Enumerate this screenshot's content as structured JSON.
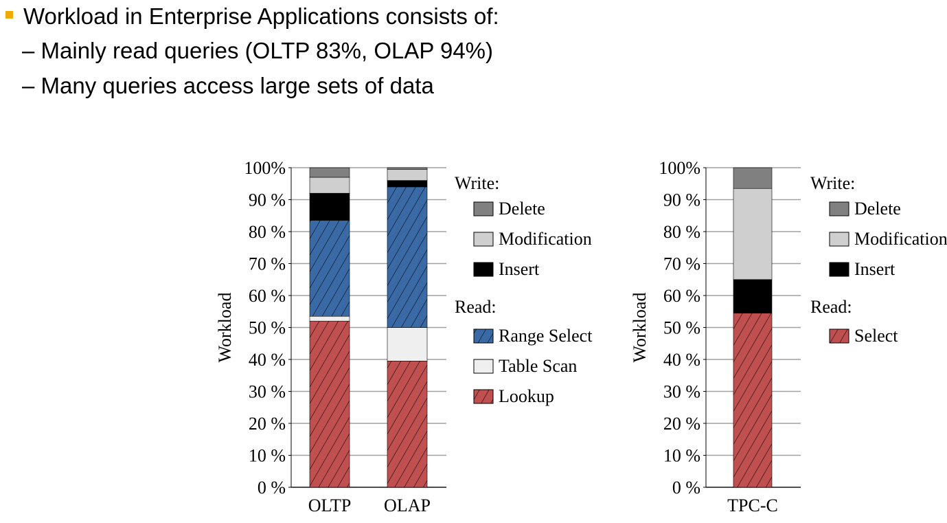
{
  "bullets": {
    "main": "Workload in Enterprise Applications consists of:",
    "sub1": "– Mainly read queries (OLTP 83%, OLAP 94%)",
    "sub2": "– Many queries access large sets of data"
  },
  "colors": {
    "bullet": "#f0ab00",
    "delete": "#808080",
    "modification": "#cfcfcf",
    "insert": "#000000",
    "range_select": "#3a6aa5",
    "table_scan": "#efefef",
    "lookup": "#c05050",
    "select": "#c05050",
    "grid": "#a0a0a0"
  },
  "chart_data": [
    {
      "type": "bar",
      "stacked": true,
      "ylabel": "Workload",
      "xlabel": "",
      "ylim": [
        0,
        100
      ],
      "y_ticks": [
        "0 %",
        "10 %",
        "20 %",
        "30 %",
        "40 %",
        "50 %",
        "60 %",
        "70 %",
        "80 %",
        "90 %",
        "100%"
      ],
      "categories": [
        "OLTP",
        "OLAP"
      ],
      "series": [
        {
          "name": "Lookup",
          "group": "Read",
          "values": [
            52,
            39.5
          ],
          "hatched": true,
          "color_key": "lookup"
        },
        {
          "name": "Table Scan",
          "group": "Read",
          "values": [
            1.5,
            10.5
          ],
          "hatched": false,
          "color_key": "table_scan"
        },
        {
          "name": "Range Select",
          "group": "Read",
          "values": [
            30,
            44
          ],
          "hatched": true,
          "color_key": "range_select"
        },
        {
          "name": "Insert",
          "group": "Write",
          "values": [
            8.5,
            2
          ],
          "hatched": false,
          "color_key": "insert"
        },
        {
          "name": "Modification",
          "group": "Write",
          "values": [
            5,
            3.5
          ],
          "hatched": false,
          "color_key": "modification"
        },
        {
          "name": "Delete",
          "group": "Write",
          "values": [
            3,
            0.5
          ],
          "hatched": false,
          "color_key": "delete"
        }
      ],
      "legend": {
        "placement": "right",
        "write_header": "Write:",
        "read_header": "Read:",
        "write_items": [
          "Delete",
          "Modification",
          "Insert"
        ],
        "read_items": [
          "Range Select",
          "Table Scan",
          "Lookup"
        ]
      },
      "grid": true
    },
    {
      "type": "bar",
      "stacked": true,
      "ylabel": "Workload",
      "xlabel": "",
      "ylim": [
        0,
        100
      ],
      "y_ticks": [
        "0 %",
        "10 %",
        "20 %",
        "30 %",
        "40 %",
        "50 %",
        "60 %",
        "70 %",
        "80 %",
        "90 %",
        "100%"
      ],
      "categories": [
        "TPC-C"
      ],
      "series": [
        {
          "name": "Select",
          "group": "Read",
          "values": [
            54.5
          ],
          "hatched": true,
          "color_key": "select"
        },
        {
          "name": "Insert",
          "group": "Write",
          "values": [
            10.5
          ],
          "hatched": false,
          "color_key": "insert"
        },
        {
          "name": "Modification",
          "group": "Write",
          "values": [
            28.5
          ],
          "hatched": false,
          "color_key": "modification"
        },
        {
          "name": "Delete",
          "group": "Write",
          "values": [
            6.5
          ],
          "hatched": false,
          "color_key": "delete"
        }
      ],
      "legend": {
        "placement": "right",
        "write_header": "Write:",
        "read_header": "Read:",
        "write_items": [
          "Delete",
          "Modification",
          "Insert"
        ],
        "read_items": [
          "Select"
        ]
      },
      "grid": true
    }
  ]
}
